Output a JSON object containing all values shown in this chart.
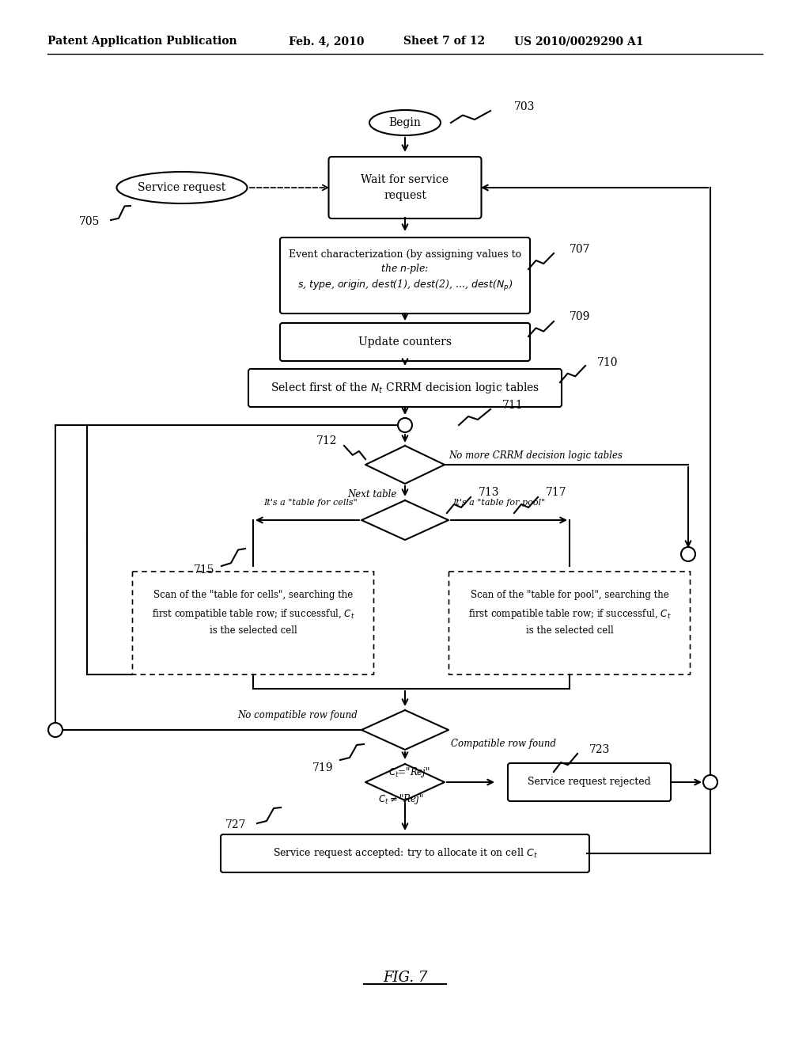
{
  "bg_color": "#ffffff",
  "line_color": "#000000",
  "text_color": "#000000",
  "header_left": "Patent Application Publication",
  "header_mid1": "Feb. 4, 2010",
  "header_mid2": "Sheet 7 of 12",
  "header_right": "US 2010/0029290 A1",
  "fig_label": "FIG. 7"
}
